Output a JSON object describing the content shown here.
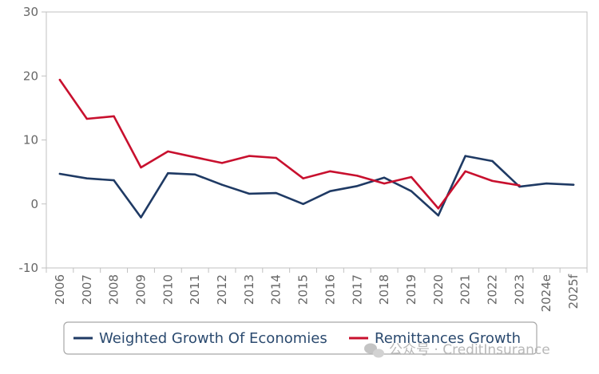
{
  "chart_data": {
    "type": "line",
    "categories": [
      "2006",
      "2007",
      "2008",
      "2009",
      "2010",
      "2011",
      "2012",
      "2013",
      "2014",
      "2015",
      "2016",
      "2017",
      "2018",
      "2019",
      "2020",
      "2021",
      "2022",
      "2023",
      "2024e",
      "2025f"
    ],
    "ylim": [
      -10,
      30
    ],
    "yticks": [
      -10,
      0,
      10,
      20,
      30
    ],
    "grid": false,
    "legend_position": "bottom",
    "series": [
      {
        "name": "Weighted Growth Of Economies",
        "color": "#1f3a64",
        "values": [
          4.7,
          4.0,
          3.7,
          -2.1,
          4.8,
          4.6,
          3.0,
          1.6,
          1.7,
          0.0,
          2.0,
          2.8,
          4.1,
          2.0,
          -1.8,
          7.5,
          6.7,
          2.7,
          3.2,
          3.0
        ]
      },
      {
        "name": "Remittances Growth",
        "color": "#c8102e",
        "values": [
          19.4,
          13.3,
          13.7,
          5.7,
          8.2,
          7.3,
          6.4,
          7.5,
          7.2,
          4.0,
          5.1,
          4.4,
          3.2,
          4.2,
          -0.7,
          5.1,
          3.6,
          2.9,
          null,
          null
        ]
      }
    ]
  },
  "watermark": {
    "text": "公众号 · CreditInsurance",
    "icon": "wechat-icon"
  }
}
